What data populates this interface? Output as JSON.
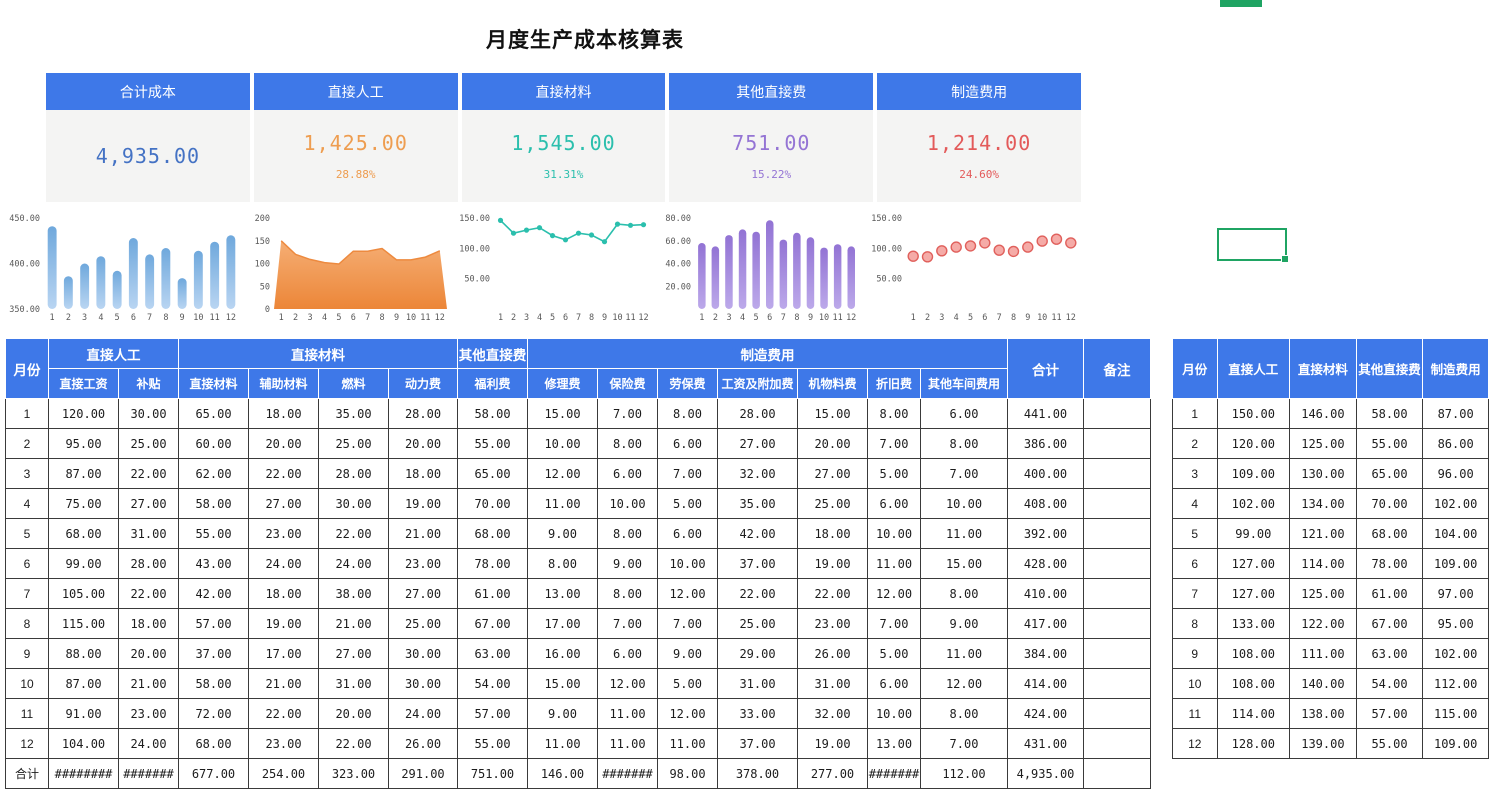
{
  "title": "月度生产成本核算表",
  "colors": {
    "header_blue": "#3E78E8",
    "selection_green": "#1FA463",
    "total_blue": "#4472C4",
    "labor_orange": "#EE9D50",
    "material_teal": "#2BBFAD",
    "other_purple": "#9474D4",
    "mfg_red": "#E35A5A"
  },
  "cards": [
    {
      "label": "合计成本",
      "value": "4,935.00",
      "percent": "",
      "color": "#4472C4"
    },
    {
      "label": "直接人工",
      "value": "1,425.00",
      "percent": "28.88%",
      "color": "#EE9D50"
    },
    {
      "label": "直接材料",
      "value": "1,545.00",
      "percent": "31.31%",
      "color": "#2BBFAD"
    },
    {
      "label": "其他直接费",
      "value": "751.00",
      "percent": "15.22%",
      "color": "#9474D4"
    },
    {
      "label": "制造费用",
      "value": "1,214.00",
      "percent": "24.60%",
      "color": "#E35A5A"
    }
  ],
  "chart_data": [
    {
      "name": "合计成本",
      "type": "bar",
      "x": [
        "1",
        "2",
        "3",
        "4",
        "5",
        "6",
        "7",
        "8",
        "9",
        "10",
        "11",
        "12"
      ],
      "values": [
        441,
        386,
        400,
        408,
        392,
        428,
        410,
        417,
        384,
        414,
        424,
        431
      ],
      "ylim": [
        350,
        450
      ],
      "yticks": [
        {
          "v": 450,
          "label": "450.00"
        },
        {
          "v": 400,
          "label": "400.00"
        },
        {
          "v": 350,
          "label": "350.00"
        }
      ],
      "color": "#6FA8DC",
      "grad": [
        "#6FA8DC",
        "#B9D5F2"
      ]
    },
    {
      "name": "直接人工",
      "type": "area",
      "x": [
        "1",
        "2",
        "3",
        "4",
        "5",
        "6",
        "7",
        "8",
        "9",
        "10",
        "11",
        "12"
      ],
      "values": [
        150,
        120,
        109,
        102,
        99,
        127,
        127,
        133,
        108,
        108,
        114,
        128
      ],
      "ylim": [
        0,
        200
      ],
      "yticks": [
        {
          "v": 200,
          "label": "200"
        },
        {
          "v": 150,
          "label": "150"
        },
        {
          "v": 100,
          "label": "100"
        },
        {
          "v": 50,
          "label": "50"
        },
        {
          "v": 0,
          "label": "0"
        }
      ],
      "color": "#ED8A3F",
      "grad": [
        "#F5AE74",
        "#EC8638"
      ]
    },
    {
      "name": "直接材料",
      "type": "line",
      "x": [
        "1",
        "2",
        "3",
        "4",
        "5",
        "6",
        "7",
        "8",
        "9",
        "10",
        "11",
        "12"
      ],
      "values": [
        146,
        125,
        130,
        134,
        121,
        114,
        125,
        122,
        111,
        140,
        138,
        139
      ],
      "ylim": [
        0,
        150
      ],
      "yticks": [
        {
          "v": 150,
          "label": "150.00"
        },
        {
          "v": 100,
          "label": "100.00"
        },
        {
          "v": 50,
          "label": "50.00"
        }
      ],
      "color": "#2BBFAD"
    },
    {
      "name": "其他直接费",
      "type": "bar",
      "x": [
        "1",
        "2",
        "3",
        "4",
        "5",
        "6",
        "7",
        "8",
        "9",
        "10",
        "11",
        "12"
      ],
      "values": [
        58,
        55,
        65,
        70,
        68,
        78,
        61,
        67,
        63,
        54,
        57,
        55
      ],
      "ylim": [
        0,
        80
      ],
      "yticks": [
        {
          "v": 80,
          "label": "80.00"
        },
        {
          "v": 60,
          "label": "60.00"
        },
        {
          "v": 40,
          "label": "40.00"
        },
        {
          "v": 20,
          "label": "20.00"
        }
      ],
      "color": "#9273D4",
      "grad": [
        "#9273D4",
        "#BCA9EA"
      ]
    },
    {
      "name": "制造费用",
      "type": "scatter",
      "x": [
        "1",
        "2",
        "3",
        "4",
        "5",
        "6",
        "7",
        "8",
        "9",
        "10",
        "11",
        "12"
      ],
      "values": [
        87,
        86,
        96,
        102,
        104,
        109,
        97,
        95,
        102,
        112,
        115,
        109
      ],
      "ylim": [
        0,
        150
      ],
      "yticks": [
        {
          "v": 150,
          "label": "150.00"
        },
        {
          "v": 100,
          "label": "100.00"
        },
        {
          "v": 50,
          "label": "50.00"
        }
      ],
      "color": "#E0605C",
      "fill": "#F5ABA7"
    }
  ],
  "main_table": {
    "corner": "月份",
    "groups": [
      {
        "label": "直接人工",
        "children": [
          "直接工资",
          "补贴"
        ]
      },
      {
        "label": "直接材料",
        "children": [
          "直接材料",
          "辅助材料",
          "燃料",
          "动力费"
        ]
      },
      {
        "label": "其他直接费",
        "children": [
          "福利费"
        ]
      },
      {
        "label": "制造费用",
        "children": [
          "修理费",
          "保险费",
          "劳保费",
          "工资及附加费",
          "机物料费",
          "折旧费",
          "其他车间费用"
        ]
      }
    ],
    "total_col": "合计",
    "note_col": "备注",
    "rows": [
      {
        "month": "1",
        "values": [
          "120.00",
          "30.00",
          "65.00",
          "18.00",
          "35.00",
          "28.00",
          "58.00",
          "15.00",
          "7.00",
          "8.00",
          "28.00",
          "15.00",
          "8.00",
          "6.00"
        ],
        "total": "441.00",
        "note": ""
      },
      {
        "month": "2",
        "values": [
          "95.00",
          "25.00",
          "60.00",
          "20.00",
          "25.00",
          "20.00",
          "55.00",
          "10.00",
          "8.00",
          "6.00",
          "27.00",
          "20.00",
          "7.00",
          "8.00"
        ],
        "total": "386.00",
        "note": ""
      },
      {
        "month": "3",
        "values": [
          "87.00",
          "22.00",
          "62.00",
          "22.00",
          "28.00",
          "18.00",
          "65.00",
          "12.00",
          "6.00",
          "7.00",
          "32.00",
          "27.00",
          "5.00",
          "7.00"
        ],
        "total": "400.00",
        "note": ""
      },
      {
        "month": "4",
        "values": [
          "75.00",
          "27.00",
          "58.00",
          "27.00",
          "30.00",
          "19.00",
          "70.00",
          "11.00",
          "10.00",
          "5.00",
          "35.00",
          "25.00",
          "6.00",
          "10.00"
        ],
        "total": "408.00",
        "note": ""
      },
      {
        "month": "5",
        "values": [
          "68.00",
          "31.00",
          "55.00",
          "23.00",
          "22.00",
          "21.00",
          "68.00",
          "9.00",
          "8.00",
          "6.00",
          "42.00",
          "18.00",
          "10.00",
          "11.00"
        ],
        "total": "392.00",
        "note": ""
      },
      {
        "month": "6",
        "values": [
          "99.00",
          "28.00",
          "43.00",
          "24.00",
          "24.00",
          "23.00",
          "78.00",
          "8.00",
          "9.00",
          "10.00",
          "37.00",
          "19.00",
          "11.00",
          "15.00"
        ],
        "total": "428.00",
        "note": ""
      },
      {
        "month": "7",
        "values": [
          "105.00",
          "22.00",
          "42.00",
          "18.00",
          "38.00",
          "27.00",
          "61.00",
          "13.00",
          "8.00",
          "12.00",
          "22.00",
          "22.00",
          "12.00",
          "8.00"
        ],
        "total": "410.00",
        "note": ""
      },
      {
        "month": "8",
        "values": [
          "115.00",
          "18.00",
          "57.00",
          "19.00",
          "21.00",
          "25.00",
          "67.00",
          "17.00",
          "7.00",
          "7.00",
          "25.00",
          "23.00",
          "7.00",
          "9.00"
        ],
        "total": "417.00",
        "note": ""
      },
      {
        "month": "9",
        "values": [
          "88.00",
          "20.00",
          "37.00",
          "17.00",
          "27.00",
          "30.00",
          "63.00",
          "16.00",
          "6.00",
          "9.00",
          "29.00",
          "26.00",
          "5.00",
          "11.00"
        ],
        "total": "384.00",
        "note": ""
      },
      {
        "month": "10",
        "values": [
          "87.00",
          "21.00",
          "58.00",
          "21.00",
          "31.00",
          "30.00",
          "54.00",
          "15.00",
          "12.00",
          "5.00",
          "31.00",
          "31.00",
          "6.00",
          "12.00"
        ],
        "total": "414.00",
        "note": ""
      },
      {
        "month": "11",
        "values": [
          "91.00",
          "23.00",
          "72.00",
          "22.00",
          "20.00",
          "24.00",
          "57.00",
          "9.00",
          "11.00",
          "12.00",
          "33.00",
          "32.00",
          "10.00",
          "8.00"
        ],
        "total": "424.00",
        "note": ""
      },
      {
        "month": "12",
        "values": [
          "104.00",
          "24.00",
          "68.00",
          "23.00",
          "22.00",
          "26.00",
          "55.00",
          "11.00",
          "11.00",
          "11.00",
          "37.00",
          "19.00",
          "13.00",
          "7.00"
        ],
        "total": "431.00",
        "note": ""
      }
    ],
    "total_row": {
      "label": "合计",
      "values": [
        "########",
        "#######",
        "677.00",
        "254.00",
        "323.00",
        "291.00",
        "751.00",
        "146.00",
        "#######",
        "98.00",
        "378.00",
        "277.00",
        "#######",
        "112.00"
      ],
      "total": "4,935.00",
      "note": ""
    }
  },
  "right_table": {
    "headers": [
      "月份",
      "直接人工",
      "直接材料",
      "其他直接费",
      "制造费用"
    ],
    "rows": [
      [
        "1",
        "150.00",
        "146.00",
        "58.00",
        "87.00"
      ],
      [
        "2",
        "120.00",
        "125.00",
        "55.00",
        "86.00"
      ],
      [
        "3",
        "109.00",
        "130.00",
        "65.00",
        "96.00"
      ],
      [
        "4",
        "102.00",
        "134.00",
        "70.00",
        "102.00"
      ],
      [
        "5",
        "99.00",
        "121.00",
        "68.00",
        "104.00"
      ],
      [
        "6",
        "127.00",
        "114.00",
        "78.00",
        "109.00"
      ],
      [
        "7",
        "127.00",
        "125.00",
        "61.00",
        "97.00"
      ],
      [
        "8",
        "133.00",
        "122.00",
        "67.00",
        "95.00"
      ],
      [
        "9",
        "108.00",
        "111.00",
        "63.00",
        "102.00"
      ],
      [
        "10",
        "108.00",
        "140.00",
        "54.00",
        "112.00"
      ],
      [
        "11",
        "114.00",
        "138.00",
        "57.00",
        "115.00"
      ],
      [
        "12",
        "128.00",
        "139.00",
        "55.00",
        "109.00"
      ]
    ]
  }
}
